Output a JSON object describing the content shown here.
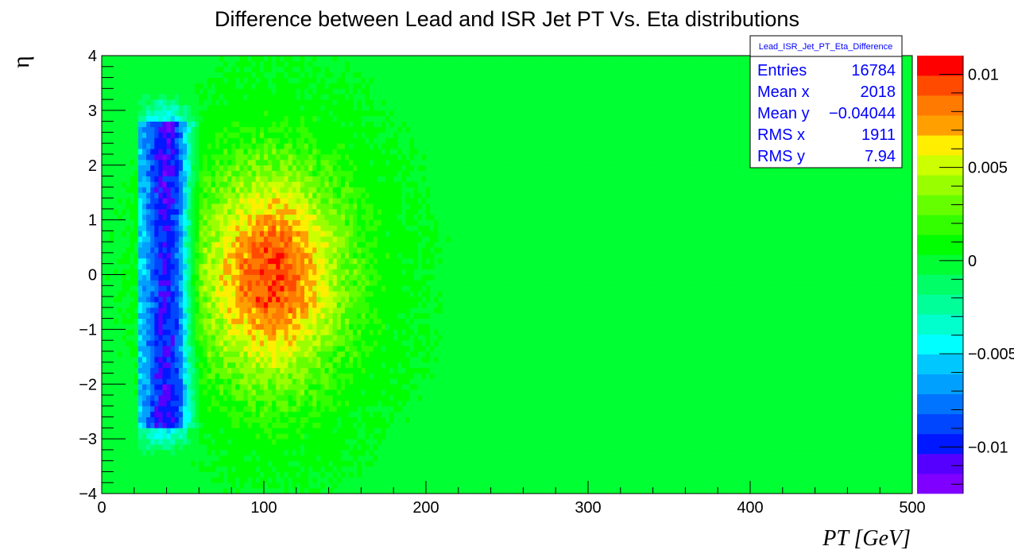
{
  "chart_data": {
    "type": "heatmap",
    "title": "Difference between Lead and ISR Jet PT Vs. Eta distributions",
    "xlabel": "PT [GeV]",
    "ylabel": "η",
    "xlim": [
      0,
      500
    ],
    "ylim": [
      -4,
      4
    ],
    "zlim": [
      -0.0125,
      0.011
    ],
    "x_ticks": [
      "0",
      "100",
      "200",
      "300",
      "400",
      "500"
    ],
    "y_ticks": [
      "−4",
      "−3",
      "−2",
      "−1",
      "0",
      "1",
      "2",
      "3",
      "4"
    ],
    "colorbar_ticks": [
      {
        "value": 0.01,
        "label": "0.01"
      },
      {
        "value": 0.005,
        "label": "0.005"
      },
      {
        "value": 0,
        "label": "0"
      },
      {
        "value": -0.005,
        "label": "−0.005"
      },
      {
        "value": -0.01,
        "label": "−0.01"
      }
    ],
    "colorbar_colors": [
      "#7f00ff",
      "#5500ff",
      "#0018ff",
      "#0046ff",
      "#0074ff",
      "#00a0ff",
      "#00c8ff",
      "#00ffff",
      "#00ffcc",
      "#00ff99",
      "#00ff66",
      "#00ff33",
      "#00ff00",
      "#33ff00",
      "#66ff00",
      "#99ff00",
      "#ccff00",
      "#ffee00",
      "#ffa000",
      "#ff7a00",
      "#ff4a00",
      "#ff0000"
    ],
    "features": [
      {
        "name": "deficit band",
        "pt_range": [
          22,
          58
        ],
        "eta_range": [
          -2.8,
          2.8
        ],
        "min_value": -0.011
      },
      {
        "name": "excess peak",
        "pt_center": 105,
        "eta_center": 0,
        "max_value": 0.0085
      }
    ],
    "stats_box": {
      "title": "Lead_ISR_Jet_PT_Eta_Difference",
      "rows": [
        {
          "label": "Entries",
          "value": "16784"
        },
        {
          "label": "Mean x",
          "value": "2018"
        },
        {
          "label": "Mean y",
          "value": "−0.04044"
        },
        {
          "label": "RMS x",
          "value": "1911"
        },
        {
          "label": "RMS y",
          "value": "7.94"
        }
      ]
    }
  }
}
